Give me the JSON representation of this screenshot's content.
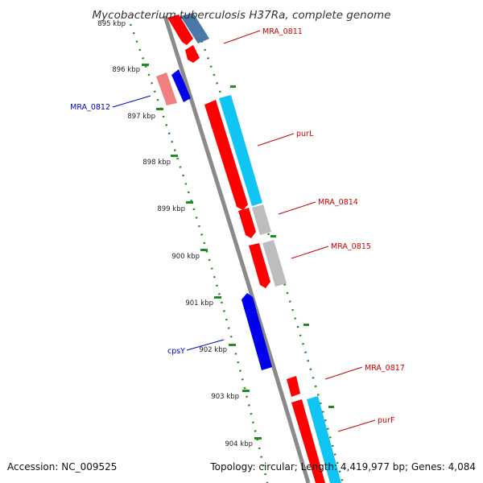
{
  "title": "Mycobacterium tuberculosis H37Ra, complete genome",
  "accession": "Accession: NC_009525",
  "topology": "Topology: circular; Length: 4,419,977 bp; Genes: 4,084",
  "colors": {
    "forward_cds": "#ff0000",
    "reverse_cds": "#0000ee",
    "forward_pale": "#f08080",
    "cyan_feature": "#10c4f4",
    "steel_feature": "#4a78a8",
    "gray_feature": "#bdbdbd",
    "backbone": "#8a8a8a",
    "ticks": "#228b22",
    "label_forward": "#cc0000",
    "label_reverse": "#0000cc"
  },
  "ticks": [
    "895 kbp",
    "896 kbp",
    "897 kbp",
    "898 kbp",
    "899 kbp",
    "900 kbp",
    "901 kbp",
    "902 kbp",
    "903 kbp",
    "904 kbp"
  ],
  "gene_labels": [
    {
      "name": "MRA_0811",
      "strand": "forward"
    },
    {
      "name": "MRA_0812",
      "strand": "reverse"
    },
    {
      "name": "purL",
      "strand": "forward"
    },
    {
      "name": "MRA_0814",
      "strand": "forward"
    },
    {
      "name": "MRA_0815",
      "strand": "forward"
    },
    {
      "name": "cpsY",
      "strand": "reverse"
    },
    {
      "name": "MRA_0817",
      "strand": "forward"
    },
    {
      "name": "purF",
      "strand": "forward"
    }
  ]
}
